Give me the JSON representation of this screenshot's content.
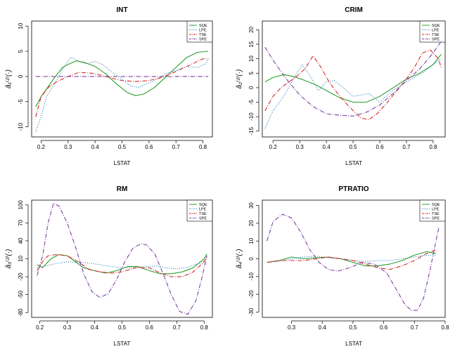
{
  "chart_data": [
    {
      "type": "line",
      "title": "INT",
      "xlabel": "LSTAT",
      "ylabel": "â₁⁽²⁾(·)",
      "xlim": [
        0.165,
        0.835
      ],
      "ylim": [
        -12,
        11
      ],
      "xticks": [
        0.2,
        0.3,
        0.4,
        0.5,
        0.6,
        0.7,
        0.8
      ],
      "xticklabels": [
        "0.2",
        "0.3",
        "0.4",
        "0.5",
        "0.6",
        "0.7",
        "0.8"
      ],
      "yticks": [
        -10,
        -5,
        0,
        5,
        10
      ],
      "yticklabels": [
        "-10",
        "-5",
        "0",
        "5",
        "10"
      ],
      "legend": [
        "SQE",
        "LPE",
        "TSE",
        "SPE"
      ],
      "series": [
        {
          "name": "SQE",
          "color": "#2ca02c",
          "dash": "solid",
          "x": [
            0.18,
            0.2,
            0.22,
            0.25,
            0.28,
            0.3,
            0.33,
            0.36,
            0.4,
            0.44,
            0.48,
            0.52,
            0.55,
            0.58,
            0.62,
            0.66,
            0.7,
            0.74,
            0.78,
            0.82
          ],
          "y": [
            -6,
            -4,
            -2.5,
            -0.2,
            1.8,
            2.4,
            3.1,
            2.8,
            2.0,
            0.5,
            -1.5,
            -3.2,
            -3.8,
            -3.5,
            -2.2,
            -0.2,
            1.8,
            3.8,
            4.8,
            5.0
          ]
        },
        {
          "name": "LPE",
          "color": "#1f77b4",
          "dash": "1 2",
          "x": [
            0.18,
            0.2,
            0.22,
            0.25,
            0.28,
            0.31,
            0.34,
            0.37,
            0.4,
            0.43,
            0.46,
            0.5,
            0.53,
            0.56,
            0.59,
            0.62,
            0.66,
            0.7,
            0.74,
            0.78,
            0.81,
            0.82
          ],
          "y": [
            -11,
            -8,
            -4,
            -1.5,
            1.5,
            3.8,
            3.0,
            2.5,
            3.0,
            2.3,
            1.0,
            -0.5,
            -1.8,
            -2.2,
            -1.5,
            -0.8,
            0.5,
            1.2,
            2.0,
            1.8,
            2.5,
            3.5
          ]
        },
        {
          "name": "TSE",
          "color": "#d62728",
          "dash": "6 2 1 2",
          "x": [
            0.18,
            0.2,
            0.23,
            0.26,
            0.3,
            0.34,
            0.38,
            0.42,
            0.46,
            0.5,
            0.55,
            0.6,
            0.64,
            0.68,
            0.72,
            0.76,
            0.8,
            0.82
          ],
          "y": [
            -8,
            -4,
            -2,
            -1.0,
            0.0,
            0.8,
            0.7,
            0.3,
            -0.3,
            -0.8,
            -1.0,
            -0.8,
            -0.3,
            0.5,
            1.5,
            2.5,
            3.5,
            3.5
          ]
        },
        {
          "name": "SPE",
          "color": "#7b3f9e",
          "dash": "6 2 1 2",
          "x": [
            0.18,
            0.82
          ],
          "y": [
            0,
            0
          ]
        }
      ]
    },
    {
      "type": "line",
      "title": "CRIM",
      "xlabel": "LSTAT",
      "ylabel": "â₂⁽²⁾(·)",
      "xlim": [
        0.16,
        0.845
      ],
      "ylim": [
        -17,
        23
      ],
      "xticks": [
        0.2,
        0.3,
        0.4,
        0.5,
        0.6,
        0.7,
        0.8
      ],
      "xticklabels": [
        "0.2",
        "0.3",
        "0.4",
        "0.5",
        "0.6",
        "0.7",
        "0.8"
      ],
      "yticks": [
        -15,
        -10,
        -5,
        0,
        5,
        10,
        15,
        20
      ],
      "yticklabels": [
        "-15",
        "-10",
        "-5",
        "0",
        "5",
        "10",
        "15",
        "20"
      ],
      "legend": [
        "SQE",
        "LPE",
        "TSE",
        "SPE"
      ],
      "series": [
        {
          "name": "SQE",
          "color": "#2ca02c",
          "dash": "solid",
          "x": [
            0.17,
            0.2,
            0.24,
            0.28,
            0.32,
            0.36,
            0.4,
            0.45,
            0.5,
            0.55,
            0.6,
            0.65,
            0.7,
            0.75,
            0.8,
            0.83
          ],
          "y": [
            2,
            3.5,
            4.5,
            3.8,
            2.5,
            1.0,
            -1.0,
            -3.5,
            -5.0,
            -5.0,
            -3.0,
            0,
            3.0,
            5.0,
            8.0,
            11.5
          ]
        },
        {
          "name": "LPE",
          "color": "#1f77b4",
          "dash": "1 2",
          "x": [
            0.17,
            0.2,
            0.24,
            0.28,
            0.31,
            0.34,
            0.37,
            0.4,
            0.43,
            0.47,
            0.5,
            0.53,
            0.56,
            0.6,
            0.64,
            0.68,
            0.72,
            0.76,
            0.8,
            0.83
          ],
          "y": [
            -14,
            -8,
            -3,
            3.5,
            8.0,
            4.0,
            -1.0,
            2.0,
            2.5,
            -0.5,
            -3.0,
            -2.5,
            -2.0,
            -5.0,
            -1.5,
            1.0,
            3.0,
            5.0,
            8.0,
            10.0
          ]
        },
        {
          "name": "TSE",
          "color": "#d62728",
          "dash": "6 2 1 2",
          "x": [
            0.17,
            0.2,
            0.23,
            0.26,
            0.29,
            0.32,
            0.35,
            0.38,
            0.41,
            0.45,
            0.49,
            0.53,
            0.56,
            0.59,
            0.62,
            0.66,
            0.7,
            0.73,
            0.76,
            0.79,
            0.82,
            0.83
          ],
          "y": [
            -8,
            -3,
            0,
            2.0,
            4.0,
            6.5,
            11.0,
            7.0,
            2.0,
            -3.0,
            -7.0,
            -10.5,
            -11.0,
            -9.0,
            -6.0,
            -1.5,
            3.0,
            7.0,
            12.0,
            13.0,
            10.0,
            7.0
          ]
        },
        {
          "name": "SPE",
          "color": "#7b3f9e",
          "dash": "6 2 1 2",
          "x": [
            0.17,
            0.2,
            0.25,
            0.3,
            0.35,
            0.4,
            0.45,
            0.5,
            0.55,
            0.6,
            0.65,
            0.7,
            0.75,
            0.8,
            0.83
          ],
          "y": [
            14,
            9.5,
            3.0,
            -2.5,
            -6.5,
            -9.0,
            -9.5,
            -9.8,
            -8.5,
            -6.0,
            -2.0,
            2.5,
            6.5,
            12.0,
            16.0
          ]
        }
      ]
    },
    {
      "type": "line",
      "title": "RM",
      "xlabel": "LSTAT",
      "ylabel": "â₃⁽²⁾(·)",
      "xlim": [
        0.17,
        0.83
      ],
      "ylim": [
        -88,
        108
      ],
      "xticks": [
        0.2,
        0.3,
        0.4,
        0.5,
        0.6,
        0.7,
        0.8
      ],
      "xticklabels": [
        "0.2",
        "0.3",
        "0.4",
        "0.5",
        "0.6",
        "0.7",
        "0.8"
      ],
      "yticks": [
        -80,
        -50,
        -20,
        10,
        40,
        70,
        100
      ],
      "yticklabels": [
        "-80",
        "-50",
        "-20",
        "10",
        "40",
        "70",
        "100"
      ],
      "legend": [
        "SQE",
        "LPE",
        "TSE",
        "SPE"
      ],
      "series": [
        {
          "name": "SQE",
          "color": "#2ca02c",
          "dash": "solid",
          "x": [
            0.19,
            0.21,
            0.24,
            0.27,
            0.3,
            0.33,
            0.36,
            0.4,
            0.44,
            0.48,
            0.52,
            0.56,
            0.6,
            0.64,
            0.68,
            0.72,
            0.76,
            0.8,
            0.81
          ],
          "y": [
            0,
            -5,
            10,
            17,
            15,
            5,
            -5,
            -10,
            -14,
            -10,
            -3,
            -3,
            -10,
            -15,
            -15,
            -12,
            -5,
            10,
            18
          ]
        },
        {
          "name": "LPE",
          "color": "#1f77b4",
          "dash": "1 2",
          "x": [
            0.19,
            0.22,
            0.26,
            0.3,
            0.34,
            0.38,
            0.42,
            0.46,
            0.5,
            0.54,
            0.58,
            0.62,
            0.66,
            0.7,
            0.74,
            0.78,
            0.81
          ],
          "y": [
            -5,
            -2,
            2,
            5,
            4,
            3,
            0,
            -3,
            -5,
            -5,
            -3,
            -2,
            -5,
            -7,
            -4,
            2,
            10
          ]
        },
        {
          "name": "TSE",
          "color": "#d62728",
          "dash": "6 2 1 2",
          "x": [
            0.19,
            0.21,
            0.23,
            0.26,
            0.3,
            0.34,
            0.38,
            0.42,
            0.46,
            0.5,
            0.55,
            0.6,
            0.64,
            0.68,
            0.72,
            0.76,
            0.8,
            0.81
          ],
          "y": [
            -10,
            5,
            15,
            17,
            15,
            5,
            -8,
            -12,
            -14,
            -12,
            -5,
            -5,
            -14,
            -20,
            -20,
            -12,
            5,
            15
          ]
        },
        {
          "name": "SPE",
          "color": "#7b3f9e",
          "dash": "6 2 1 2",
          "x": [
            0.19,
            0.21,
            0.23,
            0.25,
            0.27,
            0.3,
            0.33,
            0.36,
            0.39,
            0.42,
            0.45,
            0.48,
            0.51,
            0.54,
            0.57,
            0.59,
            0.62,
            0.65,
            0.68,
            0.71,
            0.74,
            0.77,
            0.79,
            0.81
          ],
          "y": [
            -18,
            15,
            70,
            103,
            98,
            70,
            30,
            -15,
            -45,
            -55,
            -48,
            -25,
            5,
            28,
            35,
            33,
            18,
            -15,
            -50,
            -78,
            -83,
            -60,
            -25,
            15
          ]
        }
      ]
    },
    {
      "type": "line",
      "title": "PTRATIO",
      "xlabel": "LSTAT",
      "ylabel": "â₄⁽²⁾(·)",
      "xlim": [
        0.205,
        0.8
      ],
      "ylim": [
        -33,
        33
      ],
      "xticks": [
        0.3,
        0.4,
        0.5,
        0.6,
        0.7,
        0.8
      ],
      "xticklabels": [
        "0.3",
        "0.4",
        "0.5",
        "0.6",
        "0.7",
        "0.8"
      ],
      "yticks": [
        -30,
        -20,
        -10,
        0,
        10,
        20,
        30
      ],
      "yticklabels": [
        "-30",
        "-20",
        "-10",
        "0",
        "10",
        "20",
        "30"
      ],
      "legend": [
        "SQE",
        "LPE",
        "TSE",
        "SPE"
      ],
      "series": [
        {
          "name": "SQE",
          "color": "#2ca02c",
          "dash": "solid",
          "x": [
            0.22,
            0.26,
            0.3,
            0.34,
            0.38,
            0.42,
            0.46,
            0.5,
            0.54,
            0.58,
            0.62,
            0.66,
            0.7,
            0.74,
            0.77
          ],
          "y": [
            -2,
            -1,
            1,
            0,
            0.5,
            1,
            0,
            -2,
            -4,
            -4,
            -3,
            -1,
            2,
            4,
            3
          ]
        },
        {
          "name": "LPE",
          "color": "#1f77b4",
          "dash": "1 2",
          "x": [
            0.22,
            0.26,
            0.3,
            0.34,
            0.38,
            0.42,
            0.46,
            0.5,
            0.54,
            0.58,
            0.62,
            0.66,
            0.7,
            0.74,
            0.77
          ],
          "y": [
            -2,
            -1.5,
            0,
            1,
            1.5,
            0.5,
            0,
            -1,
            -1.5,
            -1,
            -1,
            0,
            1,
            2,
            2
          ]
        },
        {
          "name": "TSE",
          "color": "#d62728",
          "dash": "6 2 1 2",
          "x": [
            0.22,
            0.26,
            0.3,
            0.34,
            0.38,
            0.42,
            0.46,
            0.5,
            0.54,
            0.58,
            0.62,
            0.66,
            0.7,
            0.74,
            0.77
          ],
          "y": [
            -2,
            -1,
            -1,
            -1,
            0,
            1,
            0,
            -1,
            -3,
            -5,
            -6,
            -4,
            -1,
            3,
            5
          ]
        },
        {
          "name": "SPE",
          "color": "#7b3f9e",
          "dash": "6 2 1 2",
          "x": [
            0.22,
            0.24,
            0.27,
            0.3,
            0.33,
            0.36,
            0.39,
            0.42,
            0.45,
            0.49,
            0.53,
            0.57,
            0.61,
            0.64,
            0.67,
            0.69,
            0.71,
            0.73,
            0.75,
            0.77,
            0.78
          ],
          "y": [
            10,
            21,
            25,
            23,
            15,
            5,
            -2,
            -6,
            -7,
            -5,
            -2,
            -3,
            -8,
            -17,
            -26,
            -29,
            -29,
            -22,
            -7,
            10,
            18
          ]
        }
      ]
    }
  ]
}
